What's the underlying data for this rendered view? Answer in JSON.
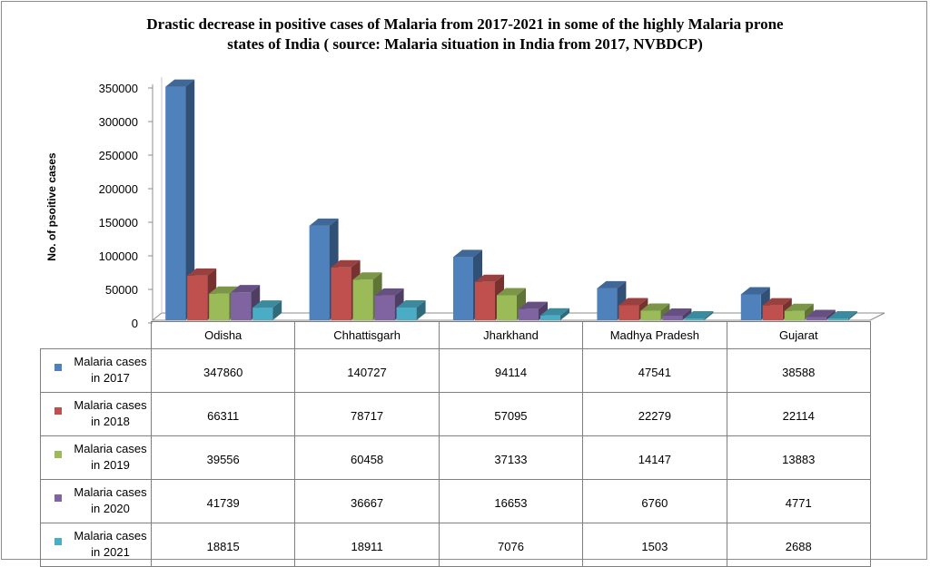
{
  "chart_data": {
    "type": "bar",
    "title_lines": [
      "Drastic decrease in positive cases of Malaria from 2017-2021 in some of the highly Malaria prone",
      "states of India ( source: Malaria situation in India from 2017, NVBDCP)"
    ],
    "ylabel": "No. of psoitive cases",
    "xlabel": "",
    "ylim": [
      0,
      350000
    ],
    "yticks": [
      "0",
      "50000",
      "100000",
      "150000",
      "200000",
      "250000",
      "300000",
      "350000"
    ],
    "categories": [
      "Odisha",
      "Chhattisgarh",
      "Jharkhand",
      "Madhya Pradesh",
      "Gujarat"
    ],
    "series": [
      {
        "name": "Malaria cases in 2017",
        "name_lines": [
          "Malaria cases",
          "in 2017"
        ],
        "color": "#4f81bd",
        "values": [
          347860,
          140727,
          94114,
          47541,
          38588
        ]
      },
      {
        "name": "Malaria cases in 2018",
        "name_lines": [
          "Malaria cases",
          "in 2018"
        ],
        "color": "#c0504d",
        "values": [
          66311,
          78717,
          57095,
          22279,
          22114
        ]
      },
      {
        "name": "Malaria cases in 2019",
        "name_lines": [
          "Malaria cases",
          "in 2019"
        ],
        "color": "#9bbb59",
        "values": [
          39556,
          60458,
          37133,
          14147,
          13883
        ]
      },
      {
        "name": "Malaria cases in 2020",
        "name_lines": [
          "Malaria cases",
          "in 2020"
        ],
        "color": "#8064a2",
        "values": [
          41739,
          36667,
          16653,
          6760,
          4771
        ]
      },
      {
        "name": "Malaria cases in 2021",
        "name_lines": [
          "Malaria cases",
          "in 2021"
        ],
        "color": "#4bacc6",
        "values": [
          18815,
          18911,
          7076,
          1503,
          2688
        ]
      }
    ],
    "grid": false,
    "legend": "data-table",
    "style": "3d-clustered-column"
  }
}
